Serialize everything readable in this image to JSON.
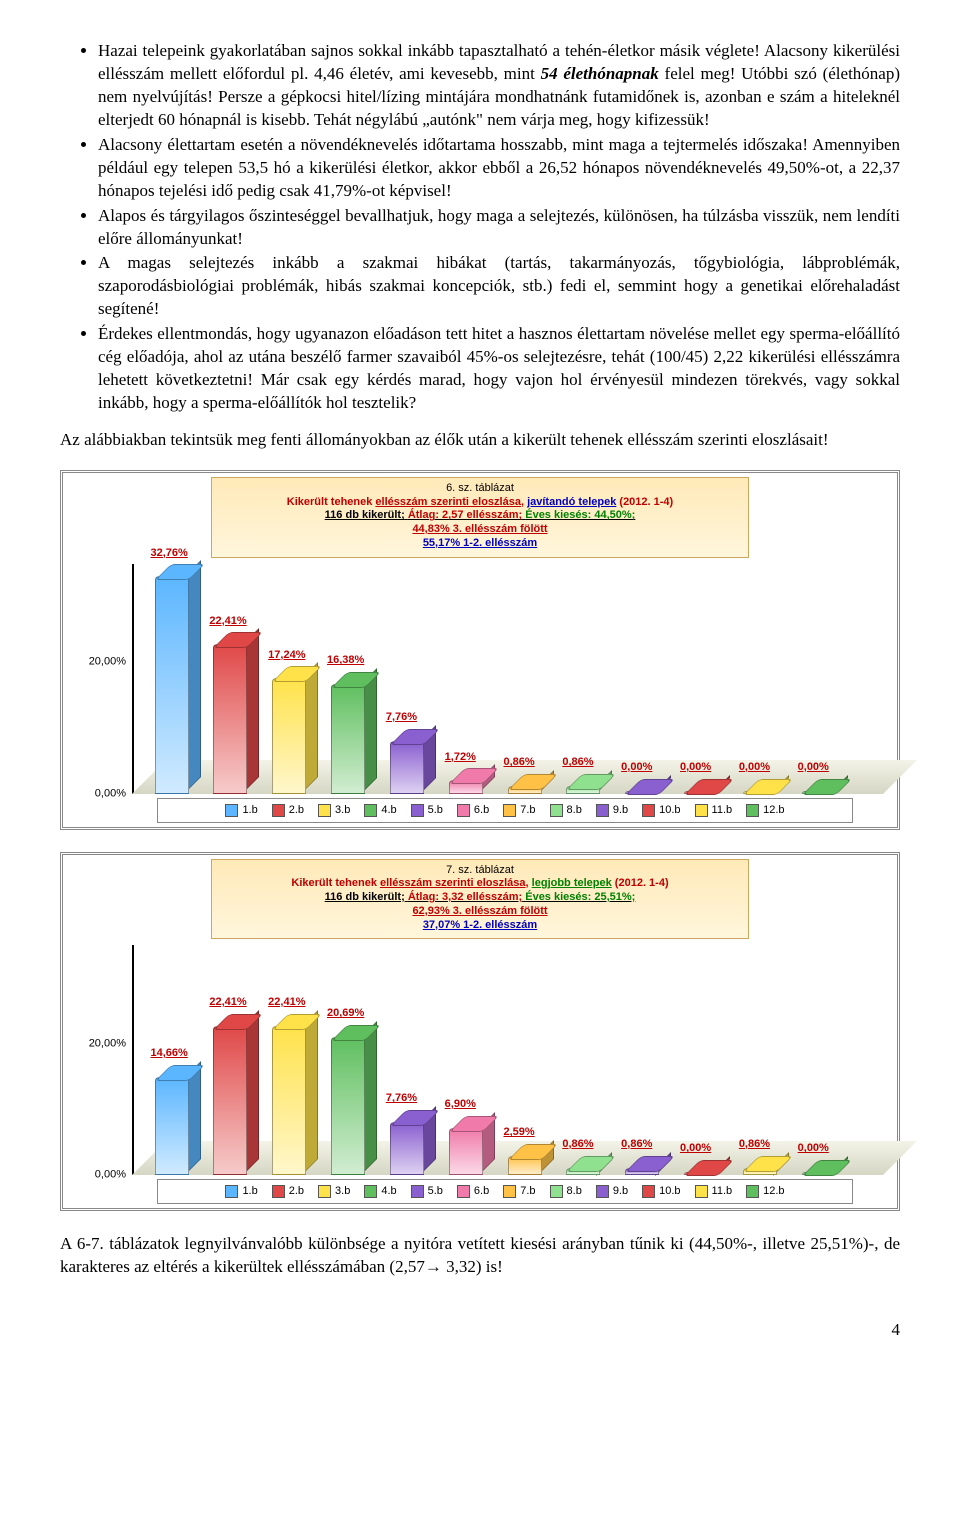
{
  "bullets": [
    "Hazai telepeink gyakorlatában sajnos sokkal inkább tapasztalható a tehén-életkor másik véglete! Alacsony kikerülési ellésszám mellett előfordul pl. 4,46 életév, ami kevesebb, mint <span class=\"boldit\">54 élethónapnak</span> felel meg! Utóbbi szó (élethónap) nem nyelvújítás! Persze a gépkocsi hitel/lízing mintájára mondhatnánk futamidőnek is, azonban e szám a hiteleknél elterjedt 60 hónapnál is kisebb. Tehát négylábú „autónk\" nem várja meg, hogy kifizessük!",
    "Alacsony élettartam esetén a növendéknevelés időtartama hosszabb, mint maga a tejtermelés időszaka! Amennyiben például egy telepen 53,5 hó a kikerülési életkor, akkor ebből a 26,52 hónapos növendéknevelés 49,50%-ot, a 22,37 hónapos tejelési idő pedig csak 41,79%-ot képvisel!",
    "Alapos és tárgyilagos őszinteséggel bevallhatjuk, hogy maga a selejtezés, különösen, ha túlzásba visszük, nem lendíti előre állományunkat!",
    "A magas selejtezés inkább a szakmai hibákat (tartás, takarmányozás, tőgybiológia, lábproblémák, szaporodásbiológiai problémák, hibás szakmai koncepciók, stb.) fedi el, semmint hogy a genetikai előrehaladást segítené!",
    "Érdekes ellentmondás, hogy ugyanazon előadáson tett hitet a hasznos élettartam növelése mellet egy sperma-előállító cég előadója, ahol az utána beszélő farmer szavaiból 45%-os selejtezésre, tehát (100/45) 2,22 kikerülési ellésszámra lehetett következtetni! Már csak egy kérdés marad, hogy vajon hol érvényesül mindezen törekvés, vagy sokkal inkább, hogy a sperma-előállítók hol tesztelik?"
  ],
  "intro": "Az alábbiakban tekintsük meg fenti állományokban az élők után a kikerült tehenek ellésszám szerinti eloszlásait!",
  "outro_pre": "A 6-7. táblázatok legnyilvánvalóbb különbsége a nyitóra vetített kiesési arányban tűnik ki (44,50%-, illetve 25,51%)-, de karakteres az eltérés a kikerültek ellésszámában (2,57",
  "outro_post": " 3,32) is!",
  "charts": {
    "ymax": 35,
    "ticks": [
      {
        "v": 0,
        "label": "0,00%"
      },
      {
        "v": 20,
        "label": "20,00%"
      }
    ],
    "categories": [
      "1.b",
      "2.b",
      "3.b",
      "4.b",
      "5.b",
      "6.b",
      "7.b",
      "8.b",
      "9.b",
      "10.b",
      "11.b",
      "12.b"
    ],
    "colors": [
      "#5bb6ff",
      "#e04848",
      "#ffe24a",
      "#5fbf5f",
      "#8a5fd0",
      "#f07aa9",
      "#ffc247",
      "#8fe08f",
      "#8a5fd0",
      "#e04848",
      "#ffe24a",
      "#5fbf5f"
    ],
    "chart6": {
      "num": "6. sz. táblázat",
      "line1_a": "Kikerült tehenek ",
      "line1_b": "ellésszám szerinti eloszlása",
      "line1_c": ", ",
      "telep": "javítandó telepek",
      "telep_class": "ct-fix",
      "line1_e": " (2012. 1-4)",
      "line2_a": "116 db kikerült",
      "line2_avg": "Átlag: 2,57 ellésszám",
      "line2_ki": "Éves kiesés: 44,50%",
      "line3": "44,83% 3. ellésszám fölött",
      "line4": "55,17% 1-2. ellésszám",
      "values": [
        32.76,
        22.41,
        17.24,
        16.38,
        7.76,
        1.72,
        0.86,
        0.86,
        0,
        0,
        0,
        0
      ],
      "labels": [
        "32,76%",
        "22,41%",
        "17,24%",
        "16,38%",
        "7,76%",
        "1,72%",
        "0,86%",
        "0,86%",
        "0,00%",
        "0,00%",
        "0,00%",
        "0,00%"
      ]
    },
    "chart7": {
      "num": "7. sz. táblázat",
      "line1_a": "Kikerült tehenek ",
      "line1_b": "ellésszám szerinti eloszlása",
      "line1_c": ", ",
      "telep": "legjobb telepek",
      "telep_class": "ct-best",
      "line1_e": " (2012. 1-4)",
      "line2_a": "116 db kikerült",
      "line2_avg": "Átlag: 3,32 ellésszám",
      "line2_ki": "Éves kiesés: 25,51%",
      "line3": "62,93% 3. ellésszám fölött",
      "line4": "37,07% 1-2. ellésszám",
      "values": [
        14.66,
        22.41,
        22.41,
        20.69,
        7.76,
        6.9,
        2.59,
        0.86,
        0.86,
        0,
        0.86,
        0
      ],
      "labels": [
        "14,66%",
        "22,41%",
        "22,41%",
        "20,69%",
        "7,76%",
        "6,90%",
        "2,59%",
        "0,86%",
        "0,86%",
        "0,00%",
        "0,86%",
        "0,00%"
      ]
    }
  },
  "page": "4"
}
